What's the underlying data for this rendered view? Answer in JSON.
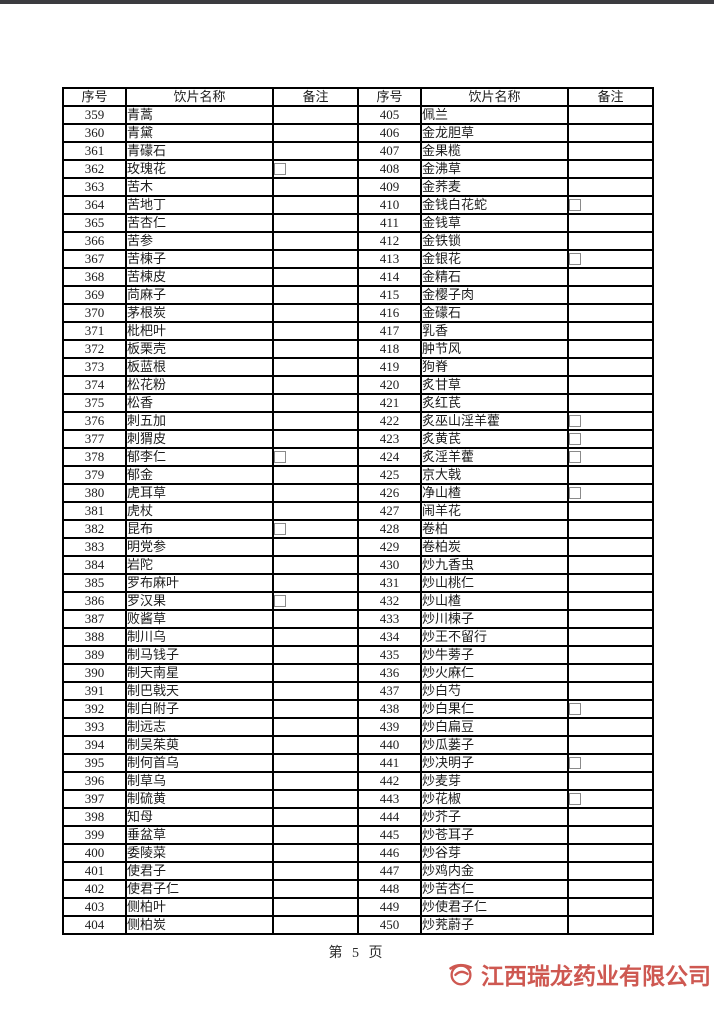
{
  "page": {
    "footer_page_label": "第 5 页",
    "watermark": {
      "company_name": "江西瑞龙药业有限公司",
      "color": "#c9473f",
      "logo_icon": "swoosh-circle-logo"
    },
    "top_bar_color": "#3b3b3f"
  },
  "table": {
    "headers": [
      "序号",
      "饮片名称",
      "备注",
      "序号",
      "饮片名称",
      "备注"
    ],
    "checkbox_symbol": "□",
    "rows": [
      [
        "359",
        "青蒿",
        false,
        "405",
        "佩兰",
        false
      ],
      [
        "360",
        "青黛",
        false,
        "406",
        "金龙胆草",
        false
      ],
      [
        "361",
        "青礞石",
        false,
        "407",
        "金果榄",
        false
      ],
      [
        "362",
        "玫瑰花",
        true,
        "408",
        "金沸草",
        false
      ],
      [
        "363",
        "苦木",
        false,
        "409",
        "金荞麦",
        false
      ],
      [
        "364",
        "苦地丁",
        false,
        "410",
        "金钱白花蛇",
        true
      ],
      [
        "365",
        "苦杏仁",
        false,
        "411",
        "金钱草",
        false
      ],
      [
        "366",
        "苦参",
        false,
        "412",
        "金铁锁",
        false
      ],
      [
        "367",
        "苦楝子",
        false,
        "413",
        "金银花",
        true
      ],
      [
        "368",
        "苦楝皮",
        false,
        "414",
        "金精石",
        false
      ],
      [
        "369",
        "苘麻子",
        false,
        "415",
        "金樱子肉",
        false
      ],
      [
        "370",
        "茅根炭",
        false,
        "416",
        "金礞石",
        false
      ],
      [
        "371",
        "枇杷叶",
        false,
        "417",
        "乳香",
        false
      ],
      [
        "372",
        "板栗壳",
        false,
        "418",
        "肿节风",
        false
      ],
      [
        "373",
        "板蓝根",
        false,
        "419",
        "狗脊",
        false
      ],
      [
        "374",
        "松花粉",
        false,
        "420",
        "炙甘草",
        false
      ],
      [
        "375",
        "松香",
        false,
        "421",
        "炙红芪",
        false
      ],
      [
        "376",
        "刺五加",
        false,
        "422",
        "炙巫山淫羊藿",
        true
      ],
      [
        "377",
        "刺猬皮",
        false,
        "423",
        "炙黄芪",
        true
      ],
      [
        "378",
        "郁李仁",
        true,
        "424",
        "炙淫羊藿",
        true
      ],
      [
        "379",
        "郁金",
        false,
        "425",
        "京大戟",
        false
      ],
      [
        "380",
        "虎耳草",
        false,
        "426",
        "净山楂",
        true
      ],
      [
        "381",
        "虎杖",
        false,
        "427",
        "闹羊花",
        false
      ],
      [
        "382",
        "昆布",
        true,
        "428",
        "卷柏",
        false
      ],
      [
        "383",
        "明党参",
        false,
        "429",
        "卷柏炭",
        false
      ],
      [
        "384",
        "岩陀",
        false,
        "430",
        "炒九香虫",
        false
      ],
      [
        "385",
        "罗布麻叶",
        false,
        "431",
        "炒山桃仁",
        false
      ],
      [
        "386",
        "罗汉果",
        true,
        "432",
        "炒山楂",
        false
      ],
      [
        "387",
        "败酱草",
        false,
        "433",
        "炒川楝子",
        false
      ],
      [
        "388",
        "制川乌",
        false,
        "434",
        "炒王不留行",
        false
      ],
      [
        "389",
        "制马钱子",
        false,
        "435",
        "炒牛蒡子",
        false
      ],
      [
        "390",
        "制天南星",
        false,
        "436",
        "炒火麻仁",
        false
      ],
      [
        "391",
        "制巴戟天",
        false,
        "437",
        "炒白芍",
        false
      ],
      [
        "392",
        "制白附子",
        false,
        "438",
        "炒白果仁",
        true
      ],
      [
        "393",
        "制远志",
        false,
        "439",
        "炒白扁豆",
        false
      ],
      [
        "394",
        "制吴茱萸",
        false,
        "440",
        "炒瓜蒌子",
        false
      ],
      [
        "395",
        "制何首乌",
        false,
        "441",
        "炒决明子",
        true
      ],
      [
        "396",
        "制草乌",
        false,
        "442",
        "炒麦芽",
        false
      ],
      [
        "397",
        "制硫黄",
        false,
        "443",
        "炒花椒",
        true
      ],
      [
        "398",
        "知母",
        false,
        "444",
        "炒芥子",
        false
      ],
      [
        "399",
        "垂盆草",
        false,
        "445",
        "炒苍耳子",
        false
      ],
      [
        "400",
        "委陵菜",
        false,
        "446",
        "炒谷芽",
        false
      ],
      [
        "401",
        "使君子",
        false,
        "447",
        "炒鸡内金",
        false
      ],
      [
        "402",
        "使君子仁",
        false,
        "448",
        "炒苦杏仁",
        false
      ],
      [
        "403",
        "侧柏叶",
        false,
        "449",
        "炒使君子仁",
        false
      ],
      [
        "404",
        "侧柏炭",
        false,
        "450",
        "炒茺蔚子",
        false
      ]
    ]
  }
}
